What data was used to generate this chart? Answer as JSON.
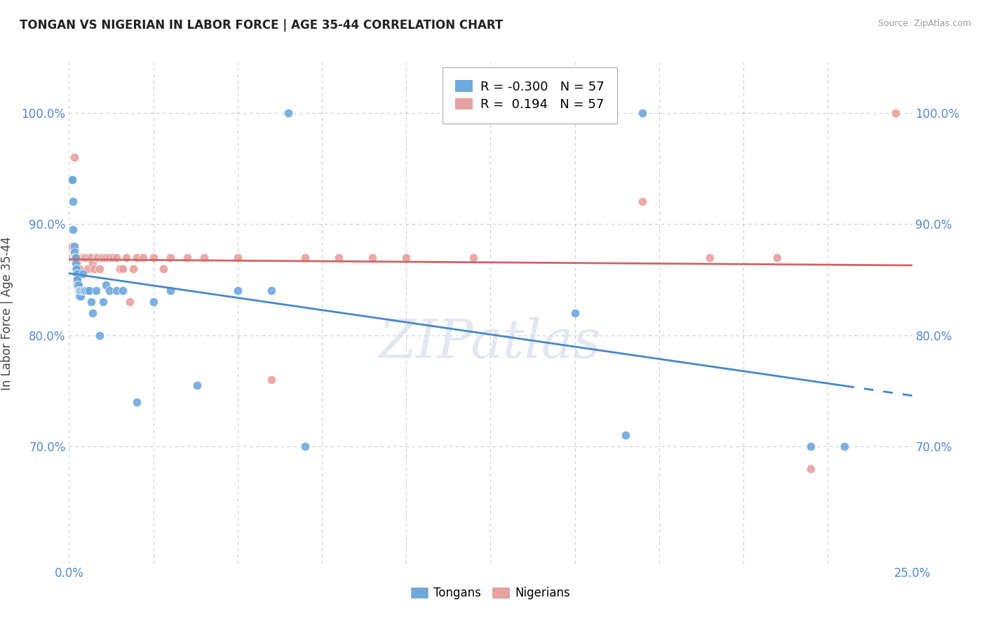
{
  "title": "TONGAN VS NIGERIAN IN LABOR FORCE | AGE 35-44 CORRELATION CHART",
  "source": "Source: ZipAtlas.com",
  "ylabel": "In Labor Force | Age 35-44",
  "xmin": 0.0,
  "xmax": 0.25,
  "ymin": 0.595,
  "ymax": 1.045,
  "yticks": [
    0.7,
    0.8,
    0.9,
    1.0
  ],
  "ytick_labels": [
    "70.0%",
    "80.0%",
    "90.0%",
    "100.0%"
  ],
  "xticks": [
    0.0,
    0.025,
    0.05,
    0.075,
    0.1,
    0.125,
    0.15,
    0.175,
    0.2,
    0.225,
    0.25
  ],
  "xtick_labels": [
    "0.0%",
    "",
    "",
    "",
    "",
    "",
    "",
    "",
    "",
    "",
    "25.0%"
  ],
  "tongan_R": -0.3,
  "tongan_N": 57,
  "nigerian_R": 0.194,
  "nigerian_N": 57,
  "tongan_color": "#6fa8dc",
  "nigerian_color": "#e8a0a0",
  "tongan_line_color": "#4a86c8",
  "nigerian_line_color": "#cc6666",
  "watermark": "ZIPatlas",
  "tongan_x": [
    0.0008,
    0.001,
    0.001,
    0.0012,
    0.0012,
    0.0015,
    0.0015,
    0.0015,
    0.0018,
    0.0018,
    0.002,
    0.002,
    0.002,
    0.0022,
    0.0022,
    0.0025,
    0.0025,
    0.0025,
    0.0025,
    0.0028,
    0.0028,
    0.003,
    0.003,
    0.003,
    0.0032,
    0.0035,
    0.0035,
    0.0038,
    0.004,
    0.0042,
    0.0045,
    0.0048,
    0.005,
    0.0055,
    0.006,
    0.0065,
    0.007,
    0.008,
    0.009,
    0.01,
    0.011,
    0.012,
    0.014,
    0.016,
    0.02,
    0.025,
    0.03,
    0.038,
    0.05,
    0.06,
    0.065,
    0.07,
    0.15,
    0.165,
    0.17,
    0.22,
    0.23
  ],
  "tongan_y": [
    0.94,
    0.94,
    0.94,
    0.92,
    0.895,
    0.88,
    0.875,
    0.87,
    0.87,
    0.87,
    0.87,
    0.865,
    0.86,
    0.86,
    0.855,
    0.855,
    0.85,
    0.85,
    0.845,
    0.845,
    0.84,
    0.84,
    0.835,
    0.84,
    0.84,
    0.835,
    0.84,
    0.84,
    0.855,
    0.84,
    0.84,
    0.84,
    0.84,
    0.84,
    0.84,
    0.83,
    0.82,
    0.84,
    0.8,
    0.83,
    0.845,
    0.84,
    0.84,
    0.84,
    0.74,
    0.83,
    0.84,
    0.755,
    0.84,
    0.84,
    1.0,
    0.7,
    0.82,
    0.71,
    1.0,
    0.7,
    0.7
  ],
  "nigerian_x": [
    0.0008,
    0.001,
    0.0012,
    0.0015,
    0.0015,
    0.0018,
    0.002,
    0.002,
    0.0022,
    0.0025,
    0.0025,
    0.0028,
    0.003,
    0.0032,
    0.0035,
    0.0038,
    0.004,
    0.0045,
    0.005,
    0.0055,
    0.006,
    0.0065,
    0.007,
    0.0075,
    0.008,
    0.0085,
    0.009,
    0.0095,
    0.01,
    0.011,
    0.012,
    0.013,
    0.014,
    0.015,
    0.016,
    0.017,
    0.018,
    0.019,
    0.02,
    0.022,
    0.025,
    0.028,
    0.03,
    0.035,
    0.04,
    0.05,
    0.06,
    0.07,
    0.08,
    0.09,
    0.1,
    0.12,
    0.17,
    0.19,
    0.21,
    0.22,
    0.245
  ],
  "nigerian_y": [
    0.87,
    0.88,
    0.87,
    0.87,
    0.96,
    0.87,
    0.87,
    0.87,
    0.87,
    0.865,
    0.87,
    0.87,
    0.86,
    0.87,
    0.87,
    0.87,
    0.87,
    0.87,
    0.87,
    0.86,
    0.87,
    0.87,
    0.865,
    0.86,
    0.87,
    0.87,
    0.86,
    0.87,
    0.87,
    0.87,
    0.87,
    0.87,
    0.87,
    0.86,
    0.86,
    0.87,
    0.83,
    0.86,
    0.87,
    0.87,
    0.87,
    0.86,
    0.87,
    0.87,
    0.87,
    0.87,
    0.76,
    0.87,
    0.87,
    0.87,
    0.87,
    0.87,
    0.92,
    0.87,
    0.87,
    0.68,
    1.0
  ]
}
